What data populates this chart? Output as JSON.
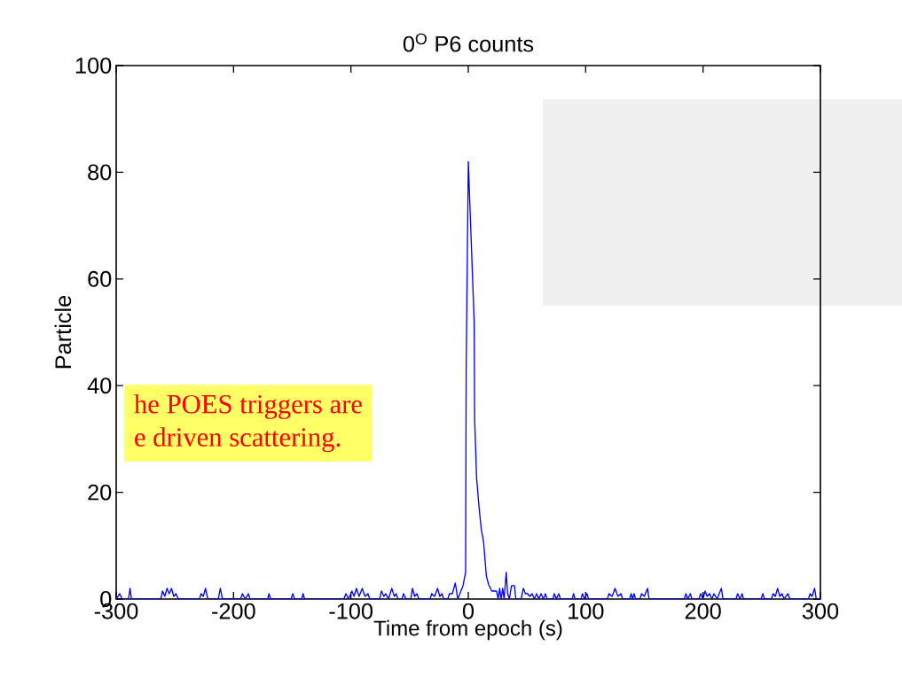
{
  "chart_data": {
    "type": "line",
    "title": "0$^{O}$ P6 counts",
    "xlabel": "Time from epoch (s)",
    "ylabel": "Particle",
    "xlim": [
      -300,
      300
    ],
    "ylim": [
      0,
      100
    ],
    "xticks": [
      -300,
      -200,
      -100,
      0,
      100,
      200,
      300
    ],
    "yticks": [
      0,
      20,
      40,
      60,
      80,
      100
    ],
    "annotations": [
      "he POES triggers are",
      "e driven scattering."
    ],
    "x": [
      -300,
      -297,
      -295,
      -289.5,
      -288.2,
      -287,
      -262,
      -260.5,
      -258.6,
      -256.7,
      -254.8,
      -252.9,
      -251,
      -249.1,
      -247,
      -229,
      -227.7,
      -225.8,
      -223.9,
      -222,
      -213,
      -211.3,
      -209.5,
      -194,
      -192.5,
      -190,
      -187.4,
      -186,
      -171,
      -169.8,
      -168.5,
      -151,
      -149.6,
      -148,
      -142,
      -140.8,
      -139.5,
      -106,
      -104.3,
      -102,
      -99.2,
      -97.3,
      -95.4,
      -93,
      -90.4,
      -88,
      -85.4,
      -84,
      -75.5,
      -74,
      -72,
      -70.3,
      -68,
      -65.2,
      -63,
      -61.4,
      -60,
      -56.5,
      -55.2,
      -53,
      -49,
      -47.6,
      -45.7,
      -43.8,
      -42,
      -32.5,
      -31.2,
      -28.7,
      -26.2,
      -24.3,
      -22.4,
      -21,
      -17.5,
      -16.1,
      -13.6,
      -11.1,
      -9,
      -4.5,
      -2.3,
      -1.8,
      0,
      5,
      5.4,
      7.1,
      9.2,
      11,
      13,
      15.4,
      17.3,
      20,
      24,
      25.5,
      26.7,
      28,
      29.3,
      30.5,
      32.3,
      33.5,
      35,
      36.8,
      38,
      39.3,
      40.5,
      45,
      46.9,
      48.7,
      50.6,
      52.5,
      54.4,
      56.3,
      58.2,
      60,
      62,
      64,
      65.7,
      67,
      72,
      73.3,
      75,
      77.1,
      78.5,
      88.5,
      89.7,
      91,
      96,
      97.3,
      99,
      101.1,
      102.5,
      118.5,
      119.9,
      122.5,
      125,
      127.5,
      130,
      131.5,
      137.5,
      138.8,
      140,
      141.3,
      142.5,
      146.3,
      147.6,
      150,
      152.7,
      154,
      184,
      185.4,
      187,
      189.2,
      190.5,
      196.5,
      198,
      200,
      201.8,
      203.5,
      205.6,
      207.5,
      209.3,
      212,
      215.6,
      217,
      228,
      229.5,
      231.5,
      233.3,
      234.5,
      249.5,
      250.9,
      252.5,
      258.3,
      259.7,
      261.6,
      263.5,
      265.4,
      267.3,
      269,
      272.4,
      274,
      289.8,
      291.2,
      293,
      295,
      296.5,
      300
    ],
    "series": [
      {
        "color": "#0000ff",
        "values": [
          0,
          1,
          0,
          0,
          2,
          0,
          0,
          1.5,
          0.5,
          2,
          1,
          2,
          0.5,
          1,
          0,
          0,
          1,
          0.5,
          2,
          0,
          0,
          2,
          0,
          0,
          1,
          0,
          1,
          0,
          0,
          1,
          0,
          0,
          1,
          0,
          0,
          1,
          0,
          0,
          1,
          0,
          1.5,
          0.5,
          2,
          0.5,
          2,
          0.5,
          1,
          0,
          0,
          1.5,
          0.5,
          1,
          0,
          2,
          0.5,
          1,
          0,
          0,
          1,
          0,
          0,
          2,
          0.5,
          1,
          0,
          0,
          1,
          0.5,
          2,
          0.5,
          1,
          0,
          0,
          1,
          1,
          3,
          0,
          2.5,
          5,
          43.7,
          82,
          52,
          33.7,
          22.6,
          17.1,
          13.2,
          10.7,
          4.3,
          2.7,
          1.5,
          1.5,
          0,
          2,
          0,
          2,
          0,
          5,
          1,
          0,
          2.5,
          2.5,
          2.5,
          0,
          0,
          2,
          1,
          1,
          0.5,
          1,
          0,
          1,
          0,
          1,
          0,
          1,
          0,
          0,
          1,
          0,
          1,
          0,
          0,
          1,
          0,
          0,
          1,
          0,
          1,
          0,
          0,
          1,
          0.5,
          2,
          0.5,
          1,
          0,
          0,
          1,
          0,
          1,
          0,
          0,
          1,
          0.5,
          2,
          0,
          0,
          1,
          0,
          1,
          0,
          0,
          1,
          0,
          1.5,
          0.5,
          1,
          0,
          1,
          0,
          2,
          0,
          0,
          1,
          0,
          1,
          0,
          0,
          1,
          0,
          0,
          1,
          0.5,
          2,
          0.5,
          1,
          0,
          1,
          0,
          0,
          1,
          0.5,
          2,
          0,
          0
        ]
      }
    ]
  }
}
